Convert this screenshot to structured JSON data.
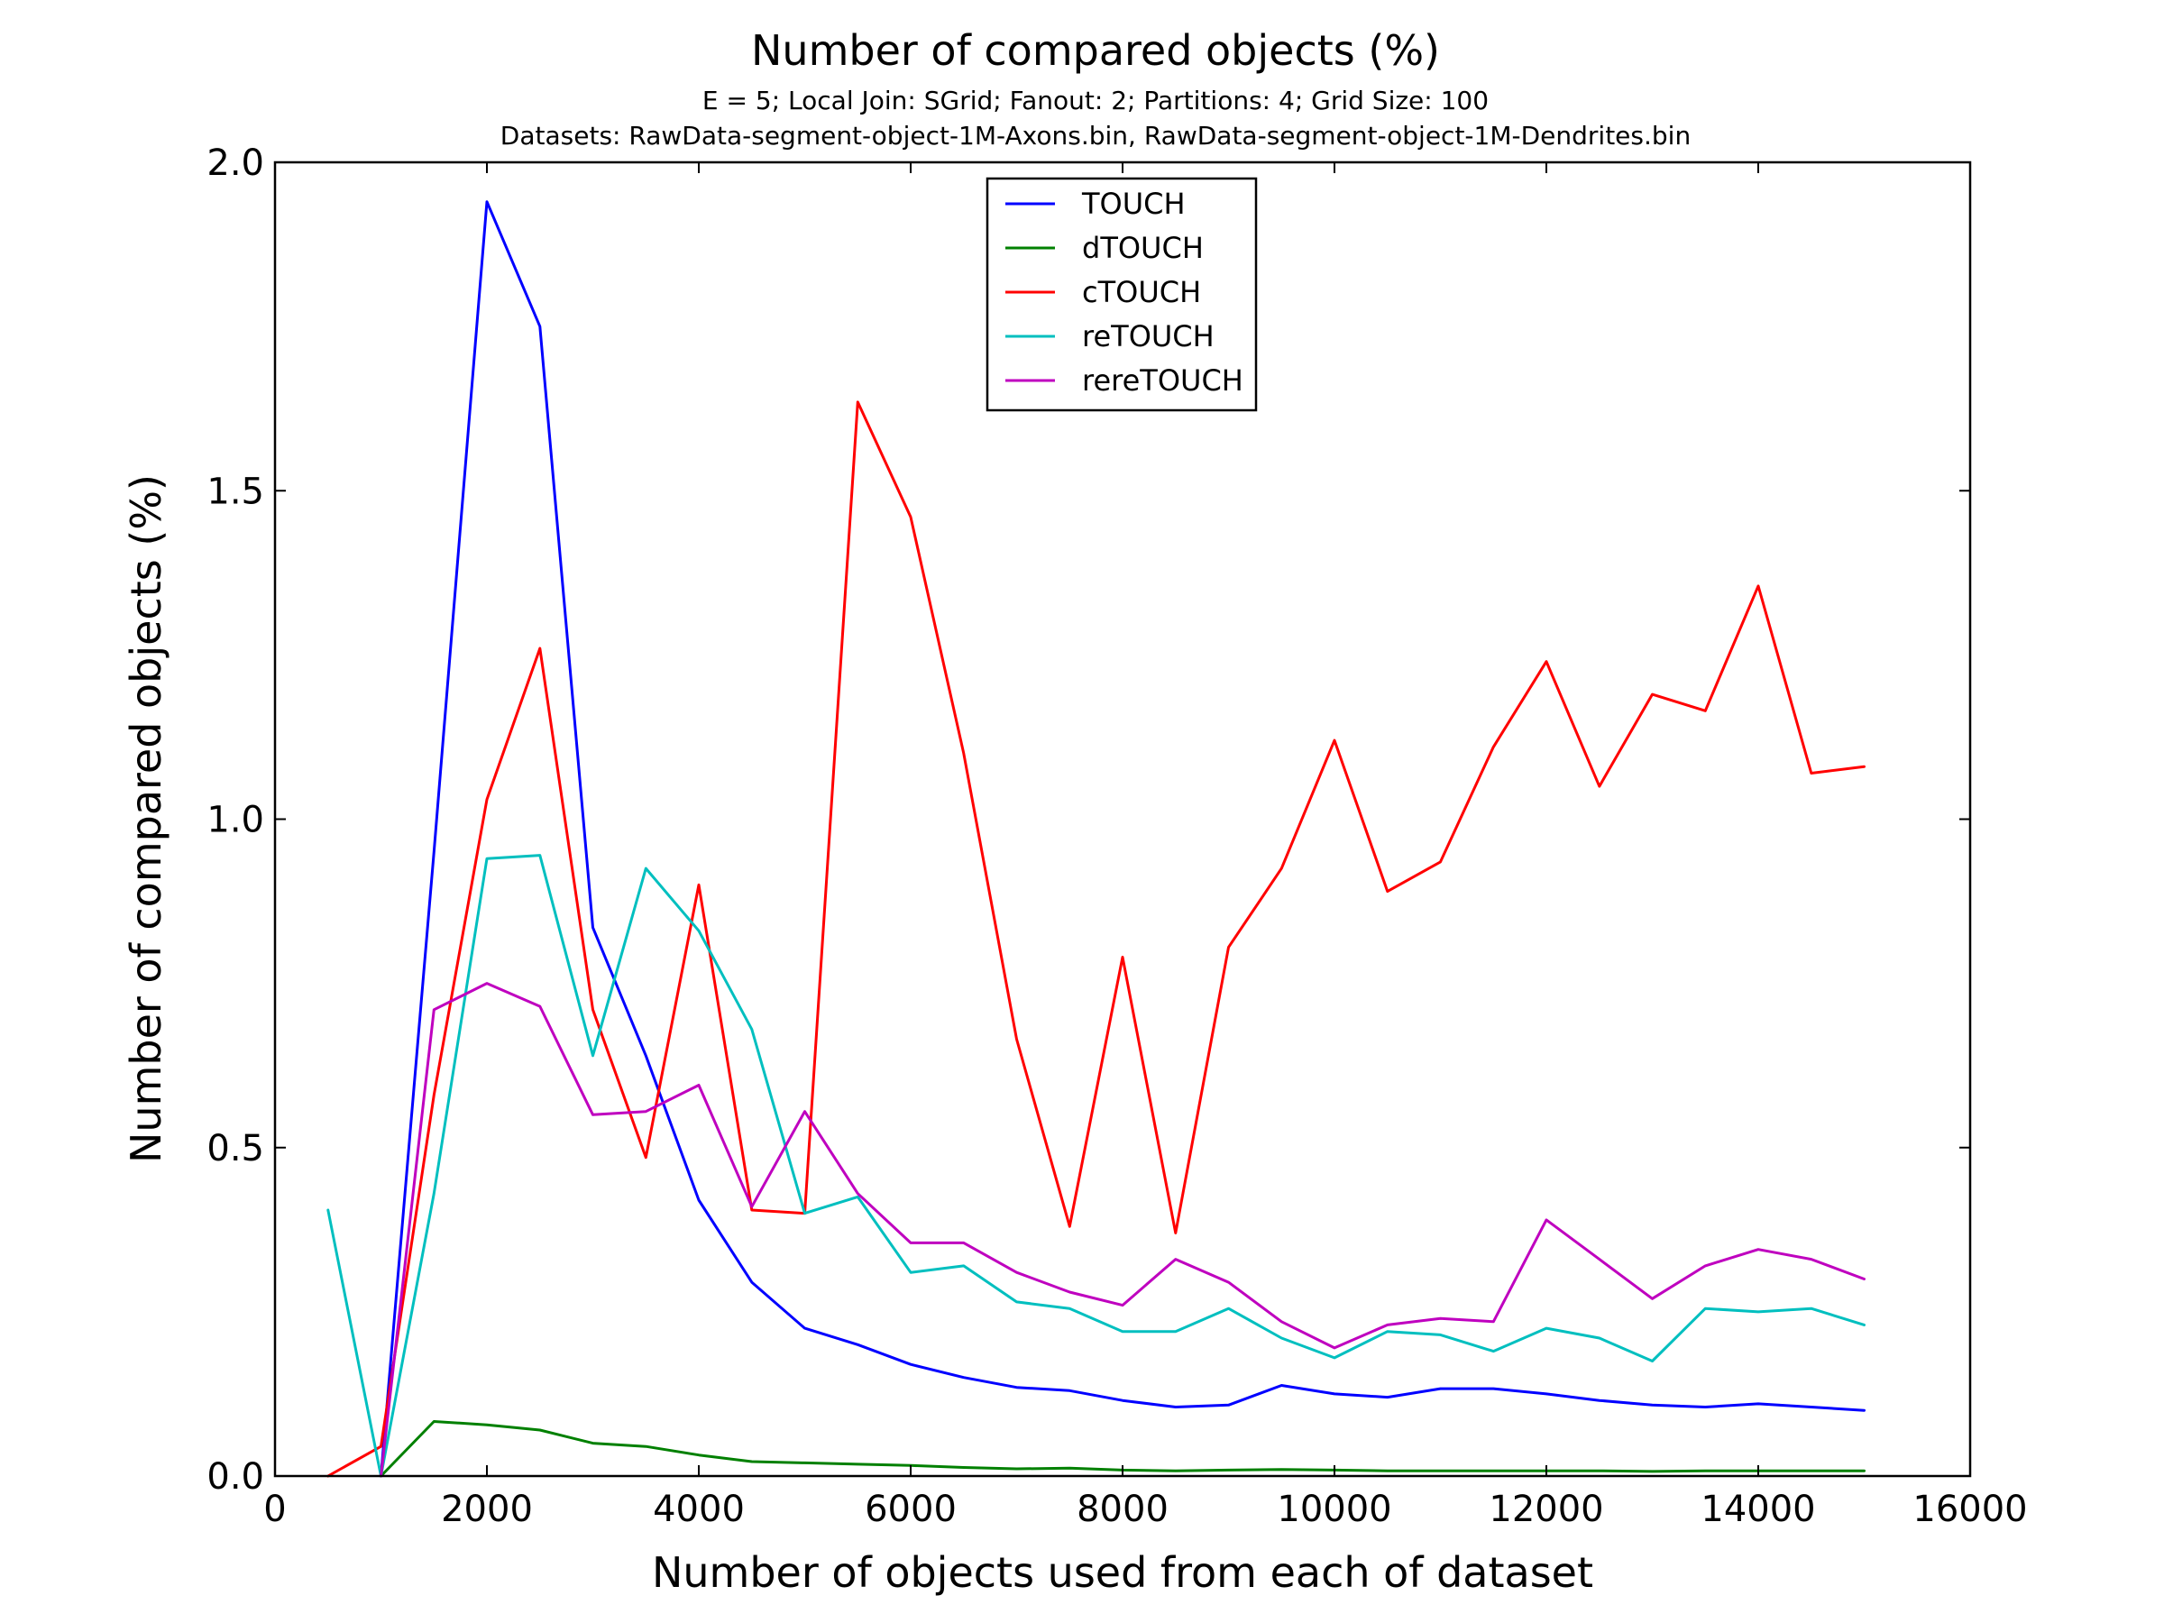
{
  "chart_data": {
    "type": "line",
    "title": "Number of compared objects (%)",
    "subtitle_lines": [
      "E = 5; Local Join: SGrid; Fanout: 2; Partitions: 4; Grid Size: 100",
      "Datasets: RawData-segment-object-1M-Axons.bin, RawData-segment-object-1M-Dendrites.bin"
    ],
    "xlabel": "Number of objects used from each of dataset",
    "ylabel": "Number of compared objects (%)",
    "xlim": [
      0,
      16000
    ],
    "ylim": [
      0,
      2.0
    ],
    "xticks": [
      0,
      2000,
      4000,
      6000,
      8000,
      10000,
      12000,
      14000,
      16000
    ],
    "yticks": [
      0.0,
      0.5,
      1.0,
      1.5,
      2.0
    ],
    "xtick_labels": [
      "0",
      "2000",
      "4000",
      "6000",
      "8000",
      "10000",
      "12000",
      "14000",
      "16000"
    ],
    "ytick_labels": [
      "0.0",
      "0.5",
      "1.0",
      "1.5",
      "2.0"
    ],
    "grid": false,
    "legend_position": "top-center",
    "series": [
      {
        "name": "TOUCH",
        "color": "#0000ff",
        "x": [
          1000,
          1500,
          2000,
          2500,
          3000,
          3500,
          4000,
          4500,
          5000,
          5500,
          6000,
          6500,
          7000,
          7500,
          8000,
          8500,
          9000,
          9500,
          10000,
          10500,
          11000,
          11500,
          12000,
          12500,
          13000,
          13500,
          14000,
          14500,
          15000
        ],
        "y": [
          0.0,
          0.95,
          1.94,
          1.75,
          0.835,
          0.64,
          0.42,
          0.295,
          0.225,
          0.2,
          0.17,
          0.15,
          0.135,
          0.13,
          0.115,
          0.105,
          0.108,
          0.138,
          0.125,
          0.12,
          0.133,
          0.133,
          0.125,
          0.115,
          0.108,
          0.105,
          0.11,
          0.105,
          0.1
        ]
      },
      {
        "name": "dTOUCH",
        "color": "#008000",
        "x": [
          1000,
          1500,
          2000,
          2500,
          3000,
          3500,
          4000,
          4500,
          5000,
          5500,
          6000,
          6500,
          7000,
          7500,
          8000,
          8500,
          9000,
          9500,
          10000,
          10500,
          11000,
          11500,
          12000,
          12500,
          13000,
          13500,
          14000,
          14500,
          15000
        ],
        "y": [
          0.0,
          0.083,
          0.078,
          0.07,
          0.05,
          0.045,
          0.032,
          0.022,
          0.02,
          0.018,
          0.016,
          0.013,
          0.011,
          0.012,
          0.009,
          0.008,
          0.009,
          0.01,
          0.009,
          0.008,
          0.008,
          0.008,
          0.008,
          0.008,
          0.007,
          0.008,
          0.008,
          0.008,
          0.008
        ]
      },
      {
        "name": "cTOUCH",
        "color": "#ff0000",
        "x": [
          500,
          1000,
          1500,
          2000,
          2500,
          3000,
          3500,
          4000,
          4500,
          5000,
          5500,
          6000,
          6500,
          7000,
          7500,
          8000,
          8500,
          9000,
          9500,
          10000,
          10500,
          11000,
          11500,
          12000,
          12500,
          13000,
          13500,
          14000,
          14500,
          15000
        ],
        "y": [
          0.0,
          0.045,
          0.58,
          1.03,
          1.26,
          0.71,
          0.485,
          0.9,
          0.405,
          0.4,
          1.635,
          1.46,
          1.1,
          0.665,
          0.38,
          0.79,
          0.37,
          0.805,
          0.925,
          1.12,
          0.89,
          0.935,
          1.11,
          1.24,
          1.05,
          1.19,
          1.165,
          1.355,
          1.07,
          1.08
        ]
      },
      {
        "name": "reTOUCH",
        "color": "#00bfbf",
        "x": [
          500,
          1000,
          1500,
          2000,
          2500,
          3000,
          3500,
          4000,
          4500,
          5000,
          5500,
          6000,
          6500,
          7000,
          7500,
          8000,
          8500,
          9000,
          9500,
          10000,
          10500,
          11000,
          11500,
          12000,
          12500,
          13000,
          13500,
          14000,
          14500,
          15000
        ],
        "y": [
          0.405,
          0.0,
          0.43,
          0.94,
          0.945,
          0.64,
          0.925,
          0.83,
          0.68,
          0.4,
          0.425,
          0.31,
          0.32,
          0.265,
          0.255,
          0.22,
          0.22,
          0.255,
          0.21,
          0.18,
          0.22,
          0.215,
          0.19,
          0.225,
          0.21,
          0.175,
          0.255,
          0.25,
          0.255,
          0.23
        ]
      },
      {
        "name": "rereTOUCH",
        "color": "#bf00bf",
        "x": [
          1000,
          1500,
          2000,
          2500,
          3000,
          3500,
          4000,
          4500,
          5000,
          5500,
          6000,
          6500,
          7000,
          7500,
          8000,
          8500,
          9000,
          9500,
          10000,
          10500,
          11000,
          11500,
          12000,
          12500,
          13000,
          13500,
          14000,
          14500,
          15000
        ],
        "y": [
          0.0,
          0.71,
          0.75,
          0.715,
          0.55,
          0.555,
          0.595,
          0.41,
          0.555,
          0.43,
          0.355,
          0.355,
          0.31,
          0.28,
          0.26,
          0.33,
          0.295,
          0.235,
          0.195,
          0.23,
          0.24,
          0.235,
          0.39,
          0.33,
          0.27,
          0.32,
          0.345,
          0.33,
          0.3
        ]
      }
    ]
  }
}
